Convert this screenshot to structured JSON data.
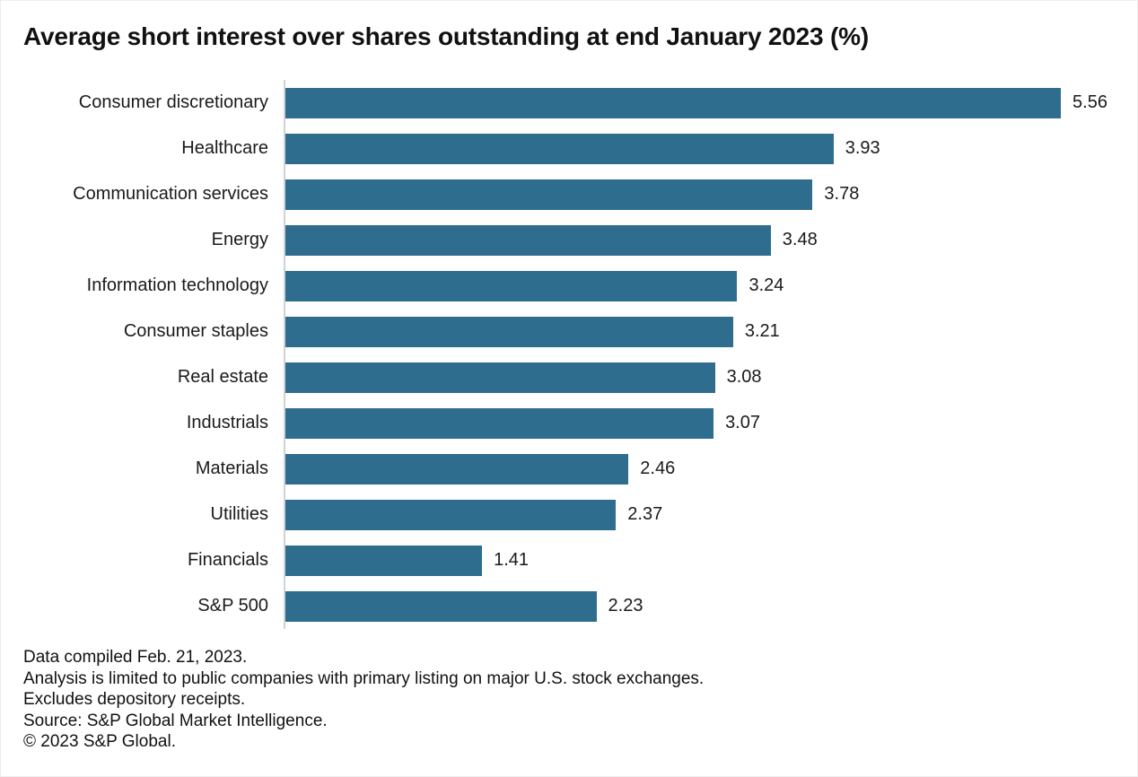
{
  "title": "Average short interest over shares outstanding at end January 2023 (%)",
  "chart_data": {
    "type": "bar",
    "orientation": "horizontal",
    "title": "Average short interest over shares outstanding at end January 2023 (%)",
    "categories": [
      "Consumer discretionary",
      "Healthcare",
      "Communication services",
      "Energy",
      "Information technology",
      "Consumer staples",
      "Real estate",
      "Industrials",
      "Materials",
      "Utilities",
      "Financials",
      "S&P 500"
    ],
    "values": [
      5.56,
      3.93,
      3.78,
      3.48,
      3.24,
      3.21,
      3.08,
      3.07,
      2.46,
      2.37,
      1.41,
      2.23
    ],
    "value_labels": [
      "5.56",
      "3.93",
      "3.78",
      "3.48",
      "3.24",
      "3.21",
      "3.08",
      "3.07",
      "2.46",
      "2.37",
      "1.41",
      "2.23"
    ],
    "xlabel": "",
    "ylabel": "",
    "xlim": [
      0,
      6.1
    ],
    "grid": false,
    "legend": "none",
    "bar_color": "#2e6d8e",
    "axis_line_color": "#cdd2d6"
  },
  "footnotes": [
    "Data compiled Feb. 21, 2023.",
    "Analysis is limited to public companies with primary listing on major U.S. stock exchanges.",
    "Excludes depository receipts.",
    "Source: S&P Global Market Intelligence.",
    "© 2023 S&P Global."
  ]
}
